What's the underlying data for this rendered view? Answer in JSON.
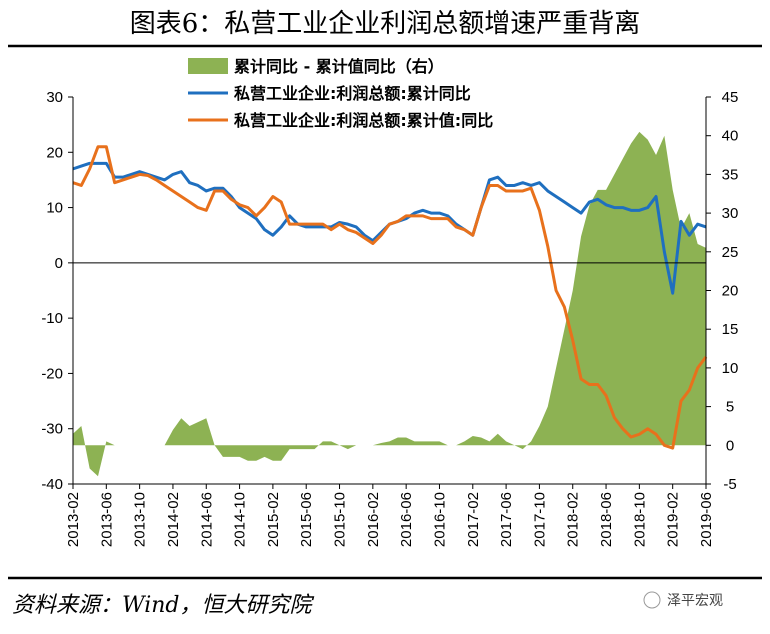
{
  "chart_data": {
    "type": "area-line",
    "title": "图表6：私营工业企业利润总额增速严重背离",
    "source": "资料来源：Wind，恒大研究院",
    "watermark": "泽平宏观",
    "categories": [
      "2013-02",
      null,
      null,
      null,
      "2013-06",
      null,
      null,
      null,
      "2013-10",
      null,
      null,
      null,
      "2014-02",
      null,
      null,
      null,
      "2014-06",
      null,
      null,
      null,
      "2014-10",
      null,
      null,
      null,
      "2015-02",
      null,
      null,
      null,
      "2015-06",
      null,
      null,
      null,
      "2015-10",
      null,
      null,
      null,
      "2016-02",
      null,
      null,
      null,
      "2016-06",
      null,
      null,
      null,
      "2016-10",
      null,
      null,
      null,
      "2017-02",
      null,
      null,
      null,
      "2017-06",
      null,
      null,
      null,
      "2017-10",
      null,
      null,
      null,
      "2018-02",
      null,
      null,
      null,
      "2018-06",
      null,
      null,
      null,
      "2018-10",
      null,
      null,
      null,
      "2019-02",
      null,
      null,
      null,
      "2019-06"
    ],
    "ylim": [
      -40,
      30
    ],
    "yticks": [
      -40,
      -30,
      -20,
      -10,
      0,
      10,
      20,
      30
    ],
    "y2lim": [
      -5,
      45
    ],
    "y2ticks": [
      -5,
      0,
      5,
      10,
      15,
      20,
      25,
      30,
      35,
      40,
      45
    ],
    "series": [
      {
        "name": "累计同比 - 累计值同比（右）",
        "type": "area",
        "axis": "y2",
        "color": "#8db253",
        "values": [
          1.5,
          2.5,
          -3,
          -4,
          0.5,
          0,
          0,
          0,
          0,
          0,
          0,
          0,
          2,
          3.5,
          2.5,
          3,
          3.5,
          0,
          -1.5,
          -1.5,
          -1.5,
          -2,
          -2,
          -1.5,
          -2,
          -2,
          -0.5,
          -0.5,
          -0.5,
          -0.5,
          0.5,
          0.5,
          0,
          -0.5,
          0,
          0,
          0,
          0.3,
          0.5,
          1,
          1,
          0.5,
          0.5,
          0.5,
          0.5,
          0,
          0,
          0.5,
          1.2,
          1,
          0.5,
          1.5,
          0.5,
          0,
          -0.5,
          0.5,
          2.5,
          5,
          10,
          15,
          20,
          27,
          31,
          33,
          33,
          35,
          37,
          39,
          40.5,
          39.5,
          37.5,
          40,
          33,
          28,
          30,
          26,
          25.5
        ]
      },
      {
        "name": "私营工业企业:利润总额:累计同比",
        "type": "line",
        "color": "#1f6fbf",
        "values": [
          17,
          17.5,
          18,
          18,
          18,
          15.5,
          15.5,
          16,
          16.5,
          16,
          15.5,
          15,
          16,
          16.5,
          14.5,
          14,
          13,
          13.5,
          13.5,
          12,
          10,
          9,
          8,
          6,
          5,
          6.5,
          8.5,
          7,
          6.5,
          6.5,
          6.5,
          6.5,
          7.3,
          7,
          6.5,
          5,
          4,
          5.5,
          7,
          7.5,
          8,
          9,
          9.5,
          9,
          9,
          8.5,
          7,
          6,
          5,
          10,
          15,
          15.5,
          14,
          14,
          14.5,
          14,
          14.5,
          13,
          12,
          11,
          10,
          9,
          11,
          11.5,
          10.5,
          10,
          10,
          9.5,
          9.5,
          10,
          12,
          2,
          -5.5,
          7.5,
          5,
          7,
          6.5
        ]
      },
      {
        "name": "私营工业企业:利润总额:累计值:同比",
        "type": "line",
        "color": "#e8711c",
        "values": [
          14.5,
          14,
          17,
          21,
          21,
          14.5,
          15,
          15.5,
          16,
          15.8,
          15,
          14,
          13,
          12,
          11,
          10,
          9.5,
          13,
          13,
          11.5,
          10.5,
          10,
          8.5,
          10,
          12,
          11,
          7,
          7,
          7,
          7,
          7,
          6,
          7,
          6,
          5.5,
          4.5,
          3.5,
          5,
          7,
          7.5,
          8.5,
          8.5,
          8.5,
          8,
          8,
          8,
          6.5,
          6,
          5,
          10,
          14,
          14,
          13,
          13,
          13,
          13.5,
          9.5,
          3,
          -5,
          -8,
          -14,
          -21,
          -22,
          -22,
          -24,
          -28,
          -30,
          -31.5,
          -31,
          -30,
          -31,
          -33,
          -33.5,
          -25,
          -23,
          -19,
          -17
        ]
      }
    ]
  }
}
